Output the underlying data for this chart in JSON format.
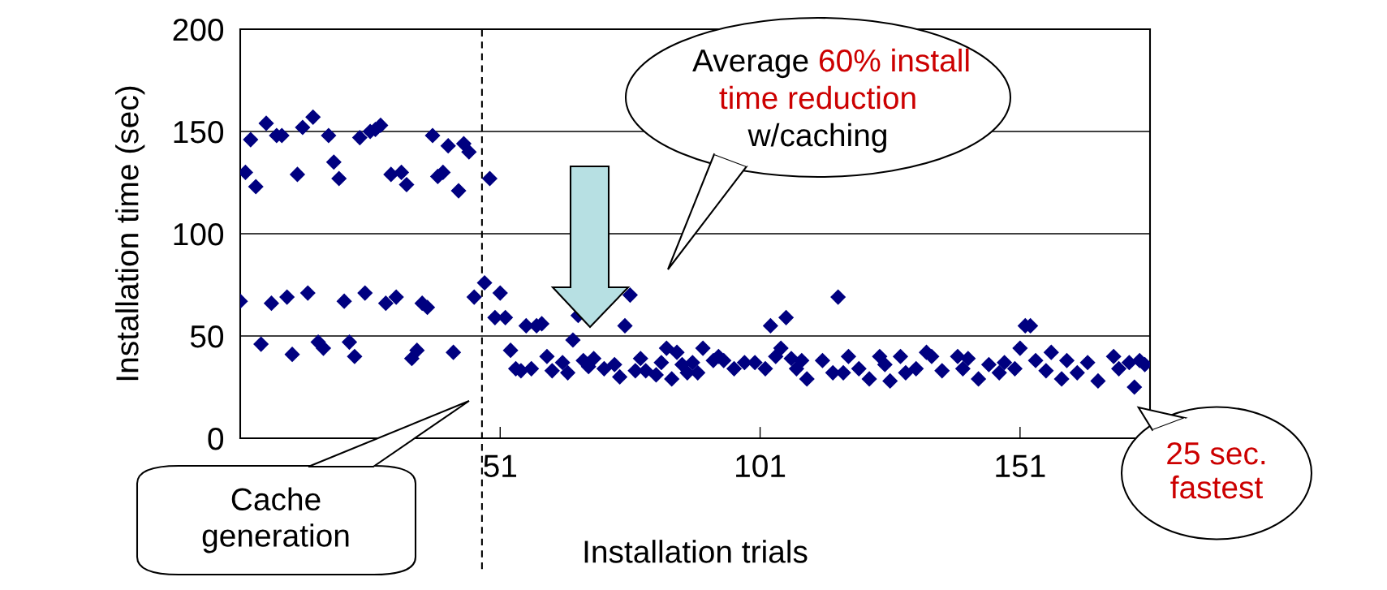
{
  "chart_data": {
    "type": "scatter",
    "xlabel": "Installation trials",
    "ylabel": "Installation time (sec)",
    "x": [
      1,
      2,
      3,
      4,
      5,
      6,
      7,
      8,
      9,
      10,
      11,
      12,
      13,
      14,
      15,
      16,
      17,
      18,
      19,
      20,
      21,
      22,
      23,
      24,
      25,
      26,
      27,
      28,
      29,
      30,
      31,
      32,
      33,
      34,
      35,
      36,
      37,
      38,
      39,
      40,
      41,
      42,
      43,
      44,
      45,
      46,
      48,
      49,
      50,
      51,
      52,
      53,
      54,
      55,
      56,
      57,
      58,
      59,
      60,
      61,
      63,
      64,
      65,
      66,
      67,
      68,
      69,
      71,
      73,
      74,
      75,
      76,
      77,
      78,
      79,
      81,
      82,
      83,
      84,
      85,
      86,
      87,
      88,
      89,
      90,
      92,
      93,
      94,
      96,
      98,
      100,
      102,
      103,
      104,
      105,
      106,
      107,
      108,
      109,
      110,
      113,
      115,
      116,
      117,
      118,
      120,
      122,
      124,
      125,
      126,
      128,
      129,
      131,
      133,
      134,
      136,
      139,
      140,
      141,
      143,
      145,
      147,
      148,
      150,
      151,
      152,
      153,
      154,
      156,
      157,
      159,
      160,
      162,
      164,
      166,
      169,
      170,
      172,
      173,
      174,
      175
    ],
    "values": [
      67,
      130,
      146,
      123,
      46,
      154,
      66,
      148,
      148,
      69,
      41,
      129,
      152,
      71,
      157,
      47,
      44,
      148,
      135,
      127,
      67,
      47,
      40,
      147,
      71,
      150,
      151,
      153,
      66,
      129,
      69,
      130,
      124,
      39,
      43,
      66,
      64,
      148,
      128,
      130,
      143,
      42,
      121,
      144,
      140,
      69,
      76,
      127,
      59,
      71,
      59,
      43,
      34,
      33,
      55,
      34,
      55,
      56,
      40,
      33,
      37,
      32,
      48,
      60,
      38,
      35,
      39,
      34,
      36,
      30,
      55,
      70,
      33,
      39,
      33,
      31,
      37,
      44,
      29,
      42,
      36,
      32,
      37,
      32,
      44,
      38,
      40,
      38,
      34,
      37,
      37,
      34,
      55,
      40,
      44,
      59,
      39,
      34,
      38,
      29,
      38,
      32,
      69,
      32,
      40,
      34,
      29,
      40,
      36,
      28,
      40,
      32,
      34,
      42,
      40,
      33,
      40,
      34,
      39,
      29,
      36,
      32,
      37,
      34,
      44,
      55,
      55,
      38,
      33,
      42,
      29,
      38,
      32,
      37,
      28,
      40,
      34,
      37,
      25,
      38,
      36
    ],
    "color": "#000080",
    "marker": "diamond",
    "xlim": [
      1,
      176
    ],
    "xticks": [
      51,
      101,
      151
    ],
    "ylim": [
      0,
      200
    ],
    "yticks": [
      0,
      50,
      100,
      150,
      200
    ],
    "grid": "y",
    "ref_lines": [
      {
        "axis": "x",
        "value": 47.5,
        "color": "#000000",
        "line_style": "dashed"
      }
    ],
    "annotations": [
      "Average 60% install",
      "time reduction",
      "w/caching",
      "Cache generation",
      {
        "text": "25 sec. fastest",
        "x": 173,
        "y": 25
      }
    ]
  }
}
